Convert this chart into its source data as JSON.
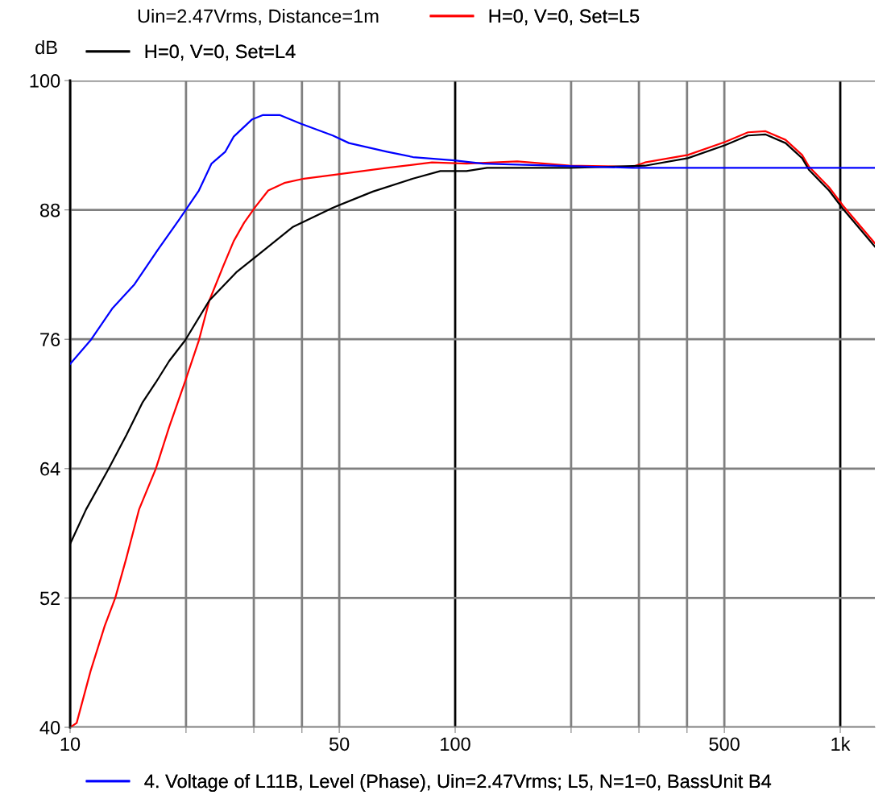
{
  "chart_data": {
    "type": "line",
    "ylabel": "dB",
    "legend_title": "Uin=2.47Vrms, Distance=1m",
    "log": "x",
    "grid": true,
    "legend": "top",
    "line_style": "solid",
    "marker": "none",
    "xlim": [
      10,
      1230
    ],
    "xticks": [
      10,
      {
        "value": 20,
        "label": null
      },
      {
        "value": 30,
        "label": null
      },
      {
        "value": 40,
        "label": null
      },
      50,
      100,
      {
        "value": 200,
        "label": null
      },
      {
        "value": 300,
        "label": null
      },
      {
        "value": 400,
        "label": null
      },
      500,
      {
        "value": 1000,
        "label": "1k"
      }
    ],
    "ylim": [
      40,
      100
    ],
    "yticks": [
      40,
      52,
      64,
      76,
      88,
      100
    ],
    "series": [
      {
        "name": "H=0, V=0, Set=L5",
        "color": "#ff0000",
        "x": [
          10,
          10.4,
          11.3,
          12.3,
          13.1,
          14.0,
          15.1,
          16.7,
          18.1,
          19.9,
          21.6,
          23.0,
          25.0,
          26.6,
          28.3,
          30.3,
          32.7,
          36.0,
          40.5,
          49.7,
          66.5,
          87,
          107,
          145,
          198,
          289,
          311,
          402,
          502,
          576,
          640,
          721,
          796,
          830,
          935,
          1016,
          1230
        ],
        "values": [
          40,
          40.4,
          45.2,
          49.4,
          52.0,
          55.7,
          60.2,
          64.0,
          67.9,
          72.1,
          75.9,
          79.6,
          82.8,
          85.1,
          86.8,
          88.3,
          89.8,
          90.5,
          90.9,
          91.3,
          91.9,
          92.4,
          92.3,
          92.5,
          92.1,
          92.0,
          92.4,
          93.1,
          94.3,
          95.2,
          95.3,
          94.5,
          93.1,
          92.0,
          90.1,
          88.4,
          84.9
        ]
      },
      {
        "name": "H=0, V=0, Set=L4",
        "color": "#000000",
        "x": [
          10,
          11.0,
          12.6,
          14.0,
          15.4,
          16.7,
          18.1,
          19.9,
          23.0,
          27.0,
          30.7,
          37.8,
          48.1,
          61.1,
          77.7,
          91.5,
          107,
          121,
          198,
          311,
          402,
          502,
          576,
          640,
          721,
          796,
          830,
          935,
          1016,
          1230
        ],
        "values": [
          57.0,
          60.2,
          64.0,
          67.1,
          70.1,
          72.0,
          74.0,
          75.9,
          79.6,
          82.2,
          83.8,
          86.4,
          88.2,
          89.7,
          90.9,
          91.6,
          91.6,
          91.9,
          91.9,
          92.1,
          92.8,
          94.0,
          94.9,
          95.0,
          94.2,
          92.8,
          91.7,
          89.8,
          88.1,
          84.6
        ]
      },
      {
        "name": "4. Voltage of L11B, Level (Phase), Uin=2.47Vrms; L5, N=1=0, BassUnit B4",
        "color": "#0000ff",
        "x": [
          10,
          11.3,
          12.9,
          14.7,
          16.9,
          19.2,
          21.6,
          23.3,
          25.3,
          26.6,
          29.7,
          31.7,
          35.0,
          39.7,
          48.1,
          53.0,
          66.5,
          77.7,
          99.4,
          118,
          289,
          1230
        ],
        "values": [
          73.7,
          75.9,
          78.9,
          81.1,
          84.3,
          87.1,
          89.8,
          92.3,
          93.4,
          94.8,
          96.4,
          96.8,
          96.8,
          96.0,
          94.9,
          94.2,
          93.4,
          92.9,
          92.6,
          92.3,
          91.9,
          91.9
        ]
      }
    ]
  }
}
